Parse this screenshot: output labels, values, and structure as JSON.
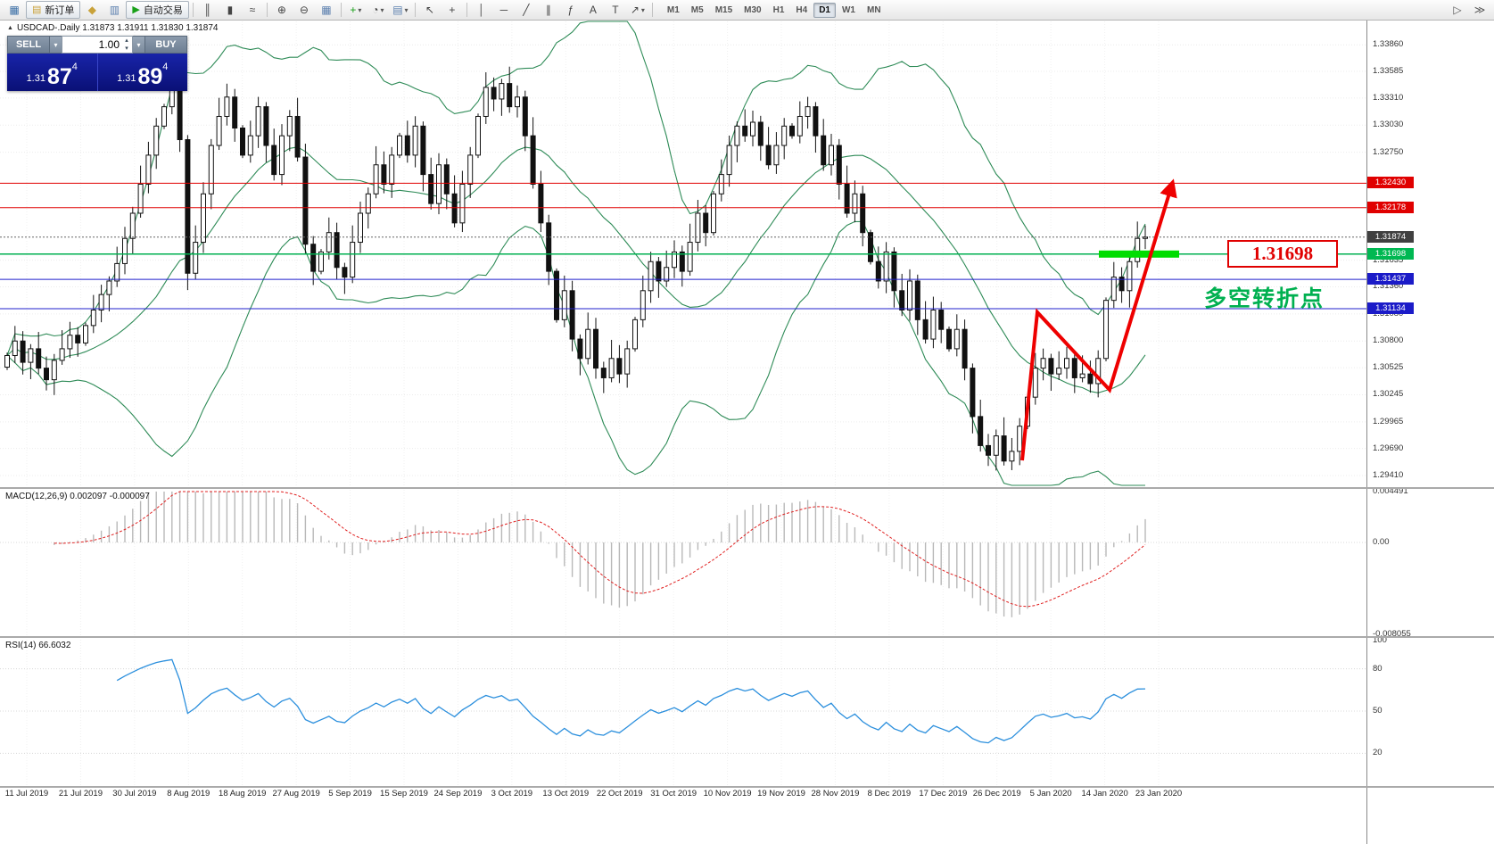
{
  "icons": {
    "caret_down": "▾",
    "caret_up": "▴",
    "up_arrow": "▲"
  },
  "colors": {
    "bollinger": "#2e8b57",
    "macd_signal": "#e02020",
    "macd_hist": "#b8b8b8",
    "rsi": "#2b8fdd",
    "arrow": "#ee0000",
    "highlight_green": "#00dd00",
    "accent_green": "#00b050",
    "tag_red": "#e00000",
    "tag_blue": "#1b1bc8",
    "tag_green": "#00b852",
    "tag_current": "#404040"
  },
  "toolbar": {
    "items": [
      {
        "name": "new-chart-icon",
        "glyph": "▦",
        "color": "#3a6ea5"
      },
      {
        "name": "new-order-button",
        "glyph": "▤",
        "label": "新订单",
        "color": "#c9a23a"
      },
      {
        "name": "strategy-tester-icon",
        "glyph": "◆",
        "color": "#c9a23a"
      },
      {
        "name": "terminal-icon",
        "glyph": "▥",
        "color": "#5b7fae"
      },
      {
        "name": "autotrading-button",
        "glyph": "▶",
        "label": "自动交易",
        "color": "#18a018"
      },
      {
        "sep": true
      },
      {
        "name": "bar-chart-type-icon",
        "glyph": "║",
        "color": "#444444"
      },
      {
        "name": "candlestick-chart-type-icon",
        "glyph": "▮",
        "color": "#444444"
      },
      {
        "name": "line-chart-type-icon",
        "glyph": "≈",
        "color": "#444444"
      },
      {
        "sep": true
      },
      {
        "name": "zoom-in-icon",
        "glyph": "⊕",
        "color": "#444444"
      },
      {
        "name": "zoom-out-icon",
        "glyph": "⊖",
        "color": "#444444"
      },
      {
        "name": "tile-windows-icon",
        "glyph": "▦",
        "color": "#5b7fae"
      },
      {
        "sep": true
      },
      {
        "name": "indicators-button",
        "glyph": "+",
        "color": "#18a018",
        "caret": true
      },
      {
        "name": "periods-button",
        "glyph": "◔",
        "color": "#444444",
        "caret": true
      },
      {
        "name": "templates-button",
        "glyph": "▤",
        "color": "#5b7fae",
        "caret": true
      },
      {
        "sep": true
      },
      {
        "name": "cursor-icon",
        "glyph": "↖",
        "color": "#444444"
      },
      {
        "name": "crosshair-icon",
        "glyph": "+",
        "color": "#444444"
      },
      {
        "sep": true
      },
      {
        "name": "vertical-line-icon",
        "glyph": "│",
        "color": "#444444"
      },
      {
        "name": "horizontal-line-icon",
        "glyph": "─",
        "color": "#444444"
      },
      {
        "name": "trendline-icon",
        "glyph": "╱",
        "color": "#444444"
      },
      {
        "name": "channel-icon",
        "glyph": "∥",
        "color": "#444444"
      },
      {
        "name": "fibonacci-icon",
        "glyph": "ƒ",
        "color": "#444444"
      },
      {
        "name": "text-icon",
        "glyph": "A",
        "color": "#444444"
      },
      {
        "name": "label-icon",
        "glyph": "T",
        "color": "#444444"
      },
      {
        "name": "arrows-icon",
        "glyph": "↗",
        "color": "#444444",
        "caret": true
      },
      {
        "sep": true
      }
    ],
    "timeframes": [
      "M1",
      "M5",
      "M15",
      "M30",
      "H1",
      "H4",
      "D1",
      "W1",
      "MN"
    ],
    "active_timeframe": "D1",
    "right_items": [
      {
        "name": "chart-shift-icon",
        "glyph": "▷"
      },
      {
        "name": "auto-scroll-icon",
        "glyph": "≫"
      }
    ]
  },
  "symbol_header": {
    "text": "USDCAD-.Daily  1.31873 1.31911 1.31830 1.31874"
  },
  "trade_panel": {
    "sell_label": "SELL",
    "buy_label": "BUY",
    "volume": "1.00",
    "bid": {
      "prefix": "1.31",
      "big": "87",
      "sup": "4"
    },
    "ask": {
      "prefix": "1.31",
      "big": "89",
      "sup": "4"
    }
  },
  "price_axis": {
    "labels": [
      "1.33860",
      "1.33585",
      "1.33310",
      "1.33030",
      "1.32750",
      "1.31635",
      "1.31360",
      "1.31080",
      "1.30800",
      "1.30525",
      "1.30245",
      "1.29965",
      "1.29690",
      "1.29410"
    ],
    "tags": [
      {
        "text": "1.32430",
        "price": 1.3243,
        "bg": "#e00000"
      },
      {
        "text": "1.32178",
        "price": 1.32178,
        "bg": "#e00000"
      },
      {
        "text": "1.31874",
        "price": 1.31874,
        "bg": "#404040"
      },
      {
        "text": "1.31698",
        "price": 1.31698,
        "bg": "#00b852"
      },
      {
        "text": "1.31437",
        "price": 1.31437,
        "bg": "#1b1bc8"
      },
      {
        "text": "1.31134",
        "price": 1.31134,
        "bg": "#1b1bc8"
      }
    ]
  },
  "macd": {
    "label": "MACD(12,26,9) 0.002097 -0.000097",
    "axis": [
      "0.004491",
      "0.00",
      "-0.008055"
    ],
    "params": {
      "fast": 12,
      "slow": 26,
      "signal": 9
    }
  },
  "rsi": {
    "label": "RSI(14) 66.6032",
    "axis": [
      "100",
      "80",
      "50",
      "20"
    ],
    "period": 14
  },
  "annotations": {
    "turning_point": {
      "text": "多空转折点",
      "color": "#00b050"
    },
    "price_callout": {
      "text": "1.31698"
    },
    "arrow_points": [
      [
        1146,
        516
      ],
      [
        1163,
        350
      ],
      [
        1244,
        437
      ],
      [
        1313,
        210
      ]
    ]
  },
  "chart_data": {
    "type": "candlestick",
    "symbol": "USDCAD-",
    "timeframe": "Daily",
    "title": "USDCAD-.Daily",
    "last_ohlc": {
      "open": 1.31873,
      "high": 1.31911,
      "low": 1.3183,
      "close": 1.31874
    },
    "ylim": [
      1.293,
      1.34
    ],
    "current_price": 1.31874,
    "closes": [
      1.3065,
      1.308,
      1.3058,
      1.3072,
      1.3052,
      1.304,
      1.306,
      1.3072,
      1.3086,
      1.3078,
      1.3096,
      1.3112,
      1.3128,
      1.3142,
      1.316,
      1.3186,
      1.3212,
      1.3242,
      1.3272,
      1.3302,
      1.3322,
      1.334,
      1.3288,
      1.315,
      1.3182,
      1.3232,
      1.3282,
      1.3312,
      1.3332,
      1.33,
      1.3272,
      1.3292,
      1.3322,
      1.3282,
      1.3252,
      1.3292,
      1.3312,
      1.327,
      1.318,
      1.3152,
      1.3172,
      1.3192,
      1.3156,
      1.3146,
      1.3182,
      1.3212,
      1.3232,
      1.3262,
      1.3242,
      1.3272,
      1.3292,
      1.3272,
      1.3302,
      1.3252,
      1.3222,
      1.3262,
      1.3232,
      1.3202,
      1.3242,
      1.3272,
      1.3312,
      1.3342,
      1.333,
      1.3346,
      1.3322,
      1.3332,
      1.3292,
      1.3242,
      1.3202,
      1.3152,
      1.3102,
      1.3132,
      1.3082,
      1.3062,
      1.3092,
      1.3052,
      1.3042,
      1.3062,
      1.3046,
      1.3072,
      1.3102,
      1.3132,
      1.3162,
      1.3142,
      1.3156,
      1.3172,
      1.3152,
      1.3182,
      1.3212,
      1.3192,
      1.3232,
      1.3252,
      1.3282,
      1.3302,
      1.3292,
      1.3306,
      1.3282,
      1.3262,
      1.3282,
      1.3302,
      1.3292,
      1.3312,
      1.3322,
      1.3292,
      1.3262,
      1.3282,
      1.3242,
      1.3212,
      1.3232,
      1.3192,
      1.3162,
      1.3142,
      1.3172,
      1.3132,
      1.3112,
      1.3142,
      1.3102,
      1.3082,
      1.3112,
      1.3092,
      1.3072,
      1.3092,
      1.3052,
      1.3002,
      1.2972,
      1.2962,
      1.2982,
      1.2956,
      1.2966,
      1.2992,
      1.3022,
      1.3052,
      1.3062,
      1.3046,
      1.3052,
      1.3062,
      1.3042,
      1.3046,
      1.3036,
      1.3062,
      1.3122,
      1.3146,
      1.3132,
      1.3162,
      1.3186,
      1.31874
    ],
    "indicators": {
      "bollinger": {
        "period": 20,
        "deviation": 2
      },
      "macd": {
        "fast": 12,
        "slow": 26,
        "signal": 9,
        "current": "0.002097",
        "signal_current": "-0.000097"
      },
      "rsi": {
        "period": 14,
        "current": "66.6032"
      }
    },
    "hlines": [
      {
        "price": 1.3243,
        "color": "#e00000",
        "width": 1
      },
      {
        "price": 1.32178,
        "color": "#e00000",
        "width": 1
      },
      {
        "price": 1.31698,
        "color": "#00b050",
        "width": 1.5,
        "highlight": true
      },
      {
        "price": 1.31437,
        "color": "#2020cc",
        "width": 1
      },
      {
        "price": 1.31134,
        "color": "#2020cc",
        "width": 1
      }
    ],
    "x_labels": [
      "11 Jul 2019",
      "21 Jul 2019",
      "30 Jul 2019",
      "8 Aug 2019",
      "18 Aug 2019",
      "27 Aug 2019",
      "5 Sep 2019",
      "15 Sep 2019",
      "24 Sep 2019",
      "3 Oct 2019",
      "13 Oct 2019",
      "22 Oct 2019",
      "31 Oct 2019",
      "10 Nov 2019",
      "19 Nov 2019",
      "28 Nov 2019",
      "8 Dec 2019",
      "17 Dec 2019",
      "26 Dec 2019",
      "5 Jan 2020",
      "14 Jan 2020",
      "23 Jan 2020"
    ]
  }
}
